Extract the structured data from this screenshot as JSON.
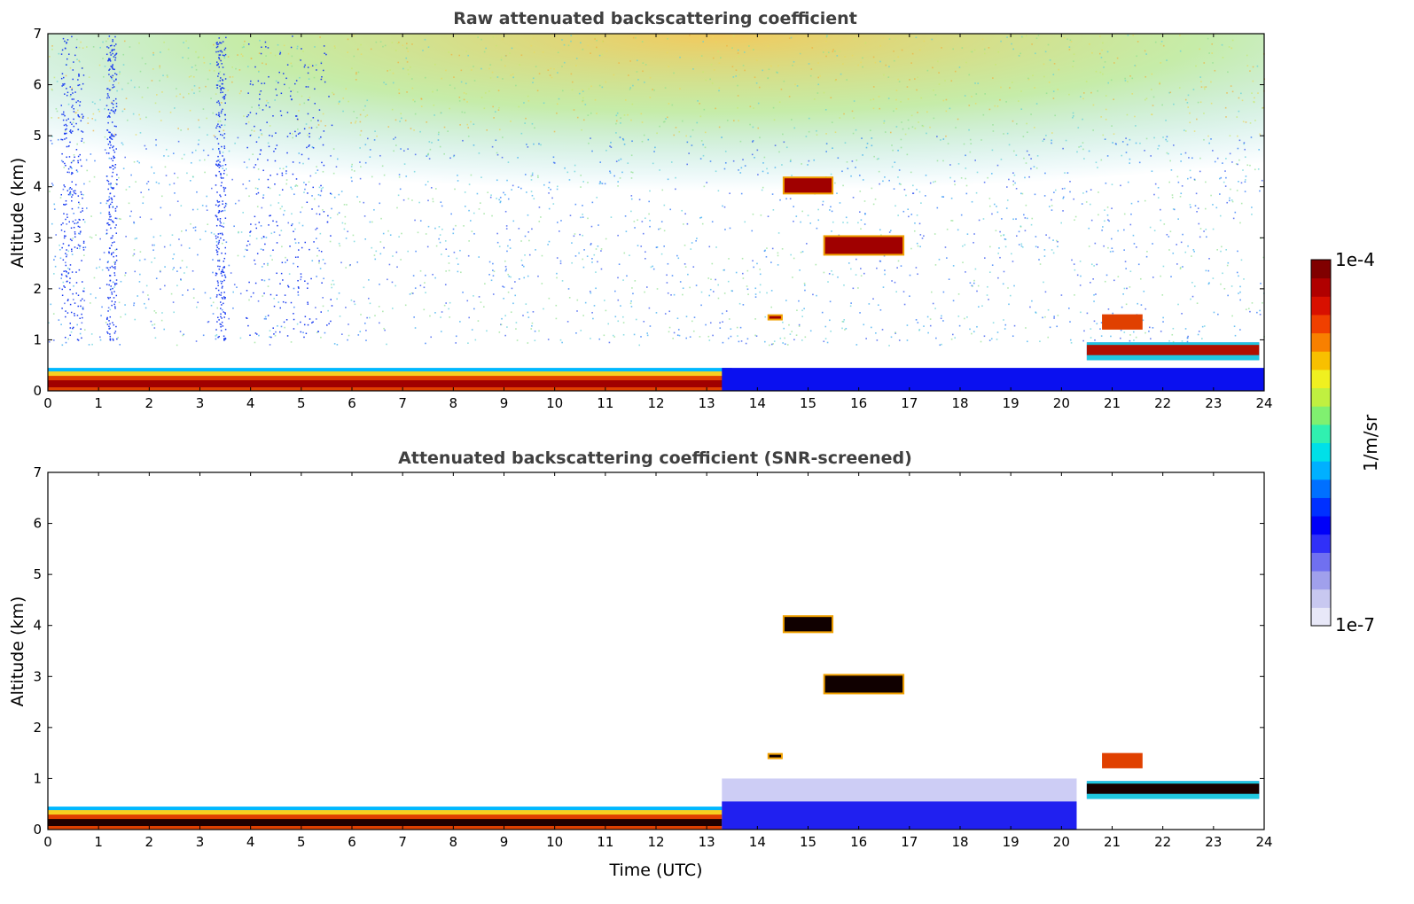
{
  "chart_data": [
    {
      "type": "heatmap",
      "title": "Raw attenuated backscattering coefficient",
      "xlabel": "",
      "ylabel": "Altitude (km)",
      "xlim": [
        0,
        24
      ],
      "ylim": [
        0,
        7
      ],
      "xticks": [
        "0",
        "1",
        "2",
        "3",
        "4",
        "5",
        "6",
        "7",
        "8",
        "9",
        "10",
        "11",
        "12",
        "13",
        "14",
        "15",
        "16",
        "17",
        "18",
        "19",
        "20",
        "21",
        "22",
        "23",
        "24"
      ],
      "yticks": [
        "0",
        "1",
        "2",
        "3",
        "4",
        "5",
        "6",
        "7"
      ],
      "features": [
        {
          "name": "boundary-layer",
          "t_start": 0,
          "t_end": 13.5,
          "alt_base": 0.0,
          "alt_top": 0.45,
          "level": "high"
        },
        {
          "name": "aerosol-layer-1",
          "t_start": 14.5,
          "t_end": 15.5,
          "alt_base": 3.85,
          "alt_top": 4.2,
          "level": "very-high"
        },
        {
          "name": "aerosol-layer-2",
          "t_start": 15.3,
          "t_end": 16.9,
          "alt_base": 2.65,
          "alt_top": 3.05,
          "level": "very-high"
        },
        {
          "name": "small-cloud",
          "t_start": 14.2,
          "t_end": 14.5,
          "alt_base": 1.38,
          "alt_top": 1.5,
          "level": "very-high"
        },
        {
          "name": "evening-layer",
          "t_start": 20.5,
          "t_end": 23.9,
          "alt_base": 0.6,
          "alt_top": 1.5,
          "level": "high"
        },
        {
          "name": "low-signal-afternoon",
          "t_start": 13.3,
          "t_end": 24,
          "alt_base": 0.0,
          "alt_top": 0.45,
          "level": "low"
        },
        {
          "name": "high-noise-band",
          "t_start": 0,
          "t_end": 24,
          "alt_base": 3.0,
          "alt_top": 7.0,
          "level": "noise"
        }
      ]
    },
    {
      "type": "heatmap",
      "title": "Attenuated backscattering coefficient (SNR-screened)",
      "xlabel": "Time (UTC)",
      "ylabel": "Altitude (km)",
      "xlim": [
        0,
        24
      ],
      "ylim": [
        0,
        7
      ],
      "xticks": [
        "0",
        "1",
        "2",
        "3",
        "4",
        "5",
        "6",
        "7",
        "8",
        "9",
        "10",
        "11",
        "12",
        "13",
        "14",
        "15",
        "16",
        "17",
        "18",
        "19",
        "20",
        "21",
        "22",
        "23",
        "24"
      ],
      "yticks": [
        "0",
        "1",
        "2",
        "3",
        "4",
        "5",
        "6",
        "7"
      ],
      "features": [
        {
          "name": "boundary-layer",
          "t_start": 0,
          "t_end": 13.5,
          "alt_base": 0.0,
          "alt_top": 0.45,
          "level": "high"
        },
        {
          "name": "aerosol-layer-1",
          "t_start": 14.5,
          "t_end": 15.5,
          "alt_base": 3.85,
          "alt_top": 4.2,
          "level": "very-high"
        },
        {
          "name": "aerosol-layer-2",
          "t_start": 15.3,
          "t_end": 16.9,
          "alt_base": 2.65,
          "alt_top": 3.05,
          "level": "very-high"
        },
        {
          "name": "small-cloud",
          "t_start": 14.2,
          "t_end": 14.5,
          "alt_base": 1.38,
          "alt_top": 1.5,
          "level": "very-high"
        },
        {
          "name": "evening-layer",
          "t_start": 20.5,
          "t_end": 23.9,
          "alt_base": 0.6,
          "alt_top": 1.5,
          "level": "high"
        },
        {
          "name": "residual-layer",
          "t_start": 13.3,
          "t_end": 20.3,
          "alt_base": 0.0,
          "alt_top": 1.0,
          "level": "low"
        }
      ]
    }
  ],
  "colorbar": {
    "label": "1/m/sr",
    "max_label": "1e-4",
    "min_label": "1e-7",
    "colors": [
      "#e8e8f8",
      "#c8c8f0",
      "#a0a0ec",
      "#7070f0",
      "#3030f8",
      "#0000f8",
      "#0030ff",
      "#0070ff",
      "#00b0ff",
      "#00e0e8",
      "#30f0b0",
      "#80f070",
      "#c0f040",
      "#f0f020",
      "#f8c000",
      "#f88000",
      "#f04000",
      "#d81000",
      "#b00000",
      "#800000"
    ]
  }
}
